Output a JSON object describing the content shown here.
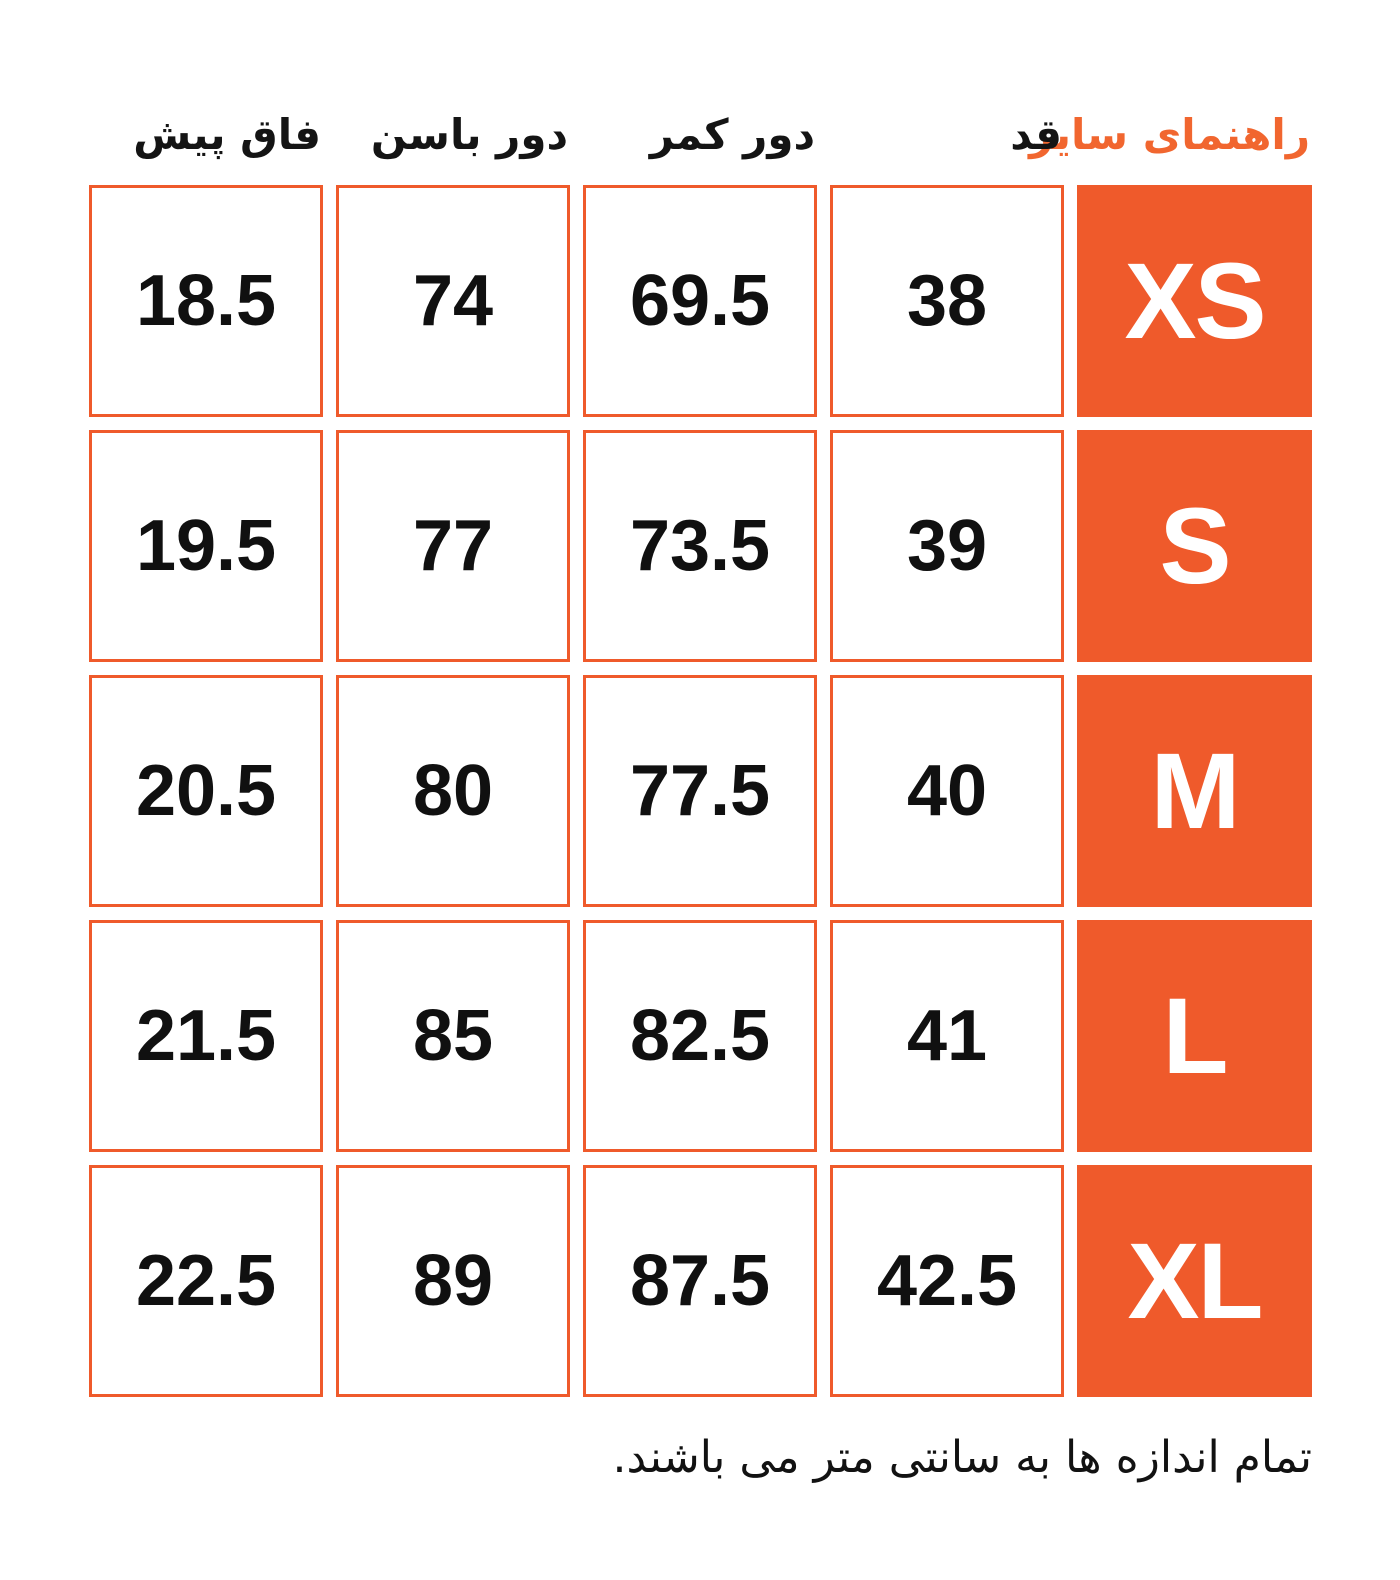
{
  "title": "راهنمای سایز",
  "colors": {
    "brand_orange": "#ef5a2b",
    "title_orange": "#f1662f",
    "text_black": "#121212",
    "cell_background": "#ffffff"
  },
  "columns": [
    {
      "label": "قد"
    },
    {
      "label": "دور کمر"
    },
    {
      "label": "دور باسن"
    },
    {
      "label": "فاق پیش"
    }
  ],
  "rows": [
    {
      "size": "XS",
      "values": [
        "38",
        "69.5",
        "74",
        "18.5"
      ]
    },
    {
      "size": "S",
      "values": [
        "39",
        "73.5",
        "77",
        "19.5"
      ]
    },
    {
      "size": "M",
      "values": [
        "40",
        "77.5",
        "80",
        "20.5"
      ]
    },
    {
      "size": "L",
      "values": [
        "41",
        "82.5",
        "85",
        "21.5"
      ]
    },
    {
      "size": "XL",
      "values": [
        "42.5",
        "87.5",
        "89",
        "22.5"
      ]
    }
  ],
  "footnote": "تمام اندازه ها به سانتی متر می باشند.",
  "units": "cm"
}
